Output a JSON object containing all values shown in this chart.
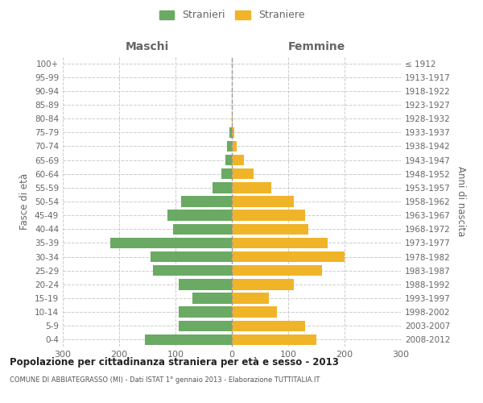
{
  "age_groups": [
    "0-4",
    "5-9",
    "10-14",
    "15-19",
    "20-24",
    "25-29",
    "30-34",
    "35-39",
    "40-44",
    "45-49",
    "50-54",
    "55-59",
    "60-64",
    "65-69",
    "70-74",
    "75-79",
    "80-84",
    "85-89",
    "90-94",
    "95-99",
    "100+"
  ],
  "birth_years": [
    "2008-2012",
    "2003-2007",
    "1998-2002",
    "1993-1997",
    "1988-1992",
    "1983-1987",
    "1978-1982",
    "1973-1977",
    "1968-1972",
    "1963-1967",
    "1958-1962",
    "1953-1957",
    "1948-1952",
    "1943-1947",
    "1938-1942",
    "1933-1937",
    "1928-1932",
    "1923-1927",
    "1918-1922",
    "1913-1917",
    "≤ 1912"
  ],
  "males": [
    155,
    95,
    95,
    70,
    95,
    140,
    145,
    215,
    105,
    115,
    90,
    35,
    18,
    12,
    8,
    5,
    0,
    0,
    0,
    0,
    0
  ],
  "females": [
    150,
    130,
    80,
    65,
    110,
    160,
    200,
    170,
    135,
    130,
    110,
    70,
    38,
    22,
    8,
    4,
    2,
    0,
    0,
    0,
    0
  ],
  "male_color": "#6aaa64",
  "female_color": "#f0b429",
  "male_label": "Stranieri",
  "female_label": "Straniere",
  "title": "Popolazione per cittadinanza straniera per età e sesso - 2013",
  "subtitle": "COMUNE DI ABBIATEGRASSO (MI) - Dati ISTAT 1° gennaio 2013 - Elaborazione TUTTITALIA.IT",
  "left_header": "Maschi",
  "right_header": "Femmine",
  "left_axis_label": "Fasce di età",
  "right_axis_label": "Anni di nascita",
  "xlim": 300,
  "background_color": "#ffffff",
  "grid_color": "#cccccc",
  "label_color": "#666666"
}
